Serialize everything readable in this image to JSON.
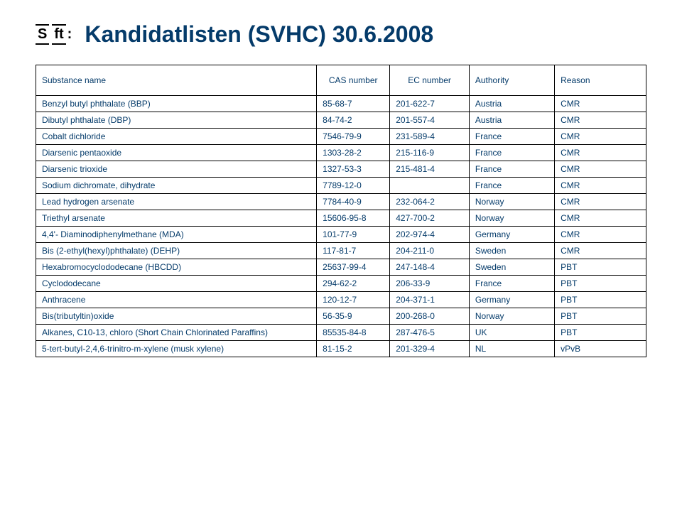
{
  "title": "Kandidatlisten (SVHC) 30.6.2008",
  "logo": {
    "part1": "S",
    "part2": "ft",
    "colon": ":"
  },
  "headers": {
    "name": "Substance name",
    "cas": "CAS number",
    "ec": "EC number",
    "authority": "Authority",
    "reason": "Reason"
  },
  "rows": [
    {
      "name": "Benzyl butyl phthalate  (BBP)",
      "cas": "85-68-7",
      "ec": "201-622-7",
      "authority": "Austria",
      "reason": "CMR"
    },
    {
      "name": "Dibutyl phthalate      (DBP)",
      "cas": "84-74-2",
      "ec": "201-557-4",
      "authority": "Austria",
      "reason": "CMR"
    },
    {
      "name": "Cobalt dichloride",
      "cas": "7546-79-9",
      "ec": "231-589-4",
      "authority": "France",
      "reason": "CMR"
    },
    {
      "name": "Diarsenic pentaoxide",
      "cas": "1303-28-2",
      "ec": "215-116-9",
      "authority": "France",
      "reason": "CMR"
    },
    {
      "name": "Diarsenic trioxide",
      "cas": "1327-53-3",
      "ec": "215-481-4",
      "authority": "France",
      "reason": "CMR"
    },
    {
      "name": "Sodium dichromate, dihydrate",
      "cas": "7789-12-0",
      "ec": "",
      "authority": "France",
      "reason": "CMR"
    },
    {
      "name": "Lead hydrogen arsenate",
      "cas": "7784-40-9",
      "ec": "232-064-2",
      "authority": "Norway",
      "reason": "CMR"
    },
    {
      "name": "Triethyl arsenate",
      "cas": "15606-95-8",
      "ec": "427-700-2",
      "authority": "Norway",
      "reason": "CMR"
    },
    {
      "name": "4,4'- Diaminodiphenylmethane  (MDA)",
      "cas": "101-77-9",
      "ec": "202-974-4",
      "authority": "Germany",
      "reason": "CMR"
    },
    {
      "name": "Bis (2-ethyl(hexyl)phthalate) (DEHP)",
      "cas": "117-81-7",
      "ec": "204-211-0",
      "authority": "Sweden",
      "reason": "CMR"
    },
    {
      "name": "Hexabromocyclododecane (HBCDD)",
      "cas": "25637-99-4",
      "ec": "247-148-4",
      "authority": "Sweden",
      "reason": "PBT"
    },
    {
      "name": "Cyclododecane",
      "cas": "294-62-2",
      "ec": "206-33-9",
      "authority": "France",
      "reason": "PBT"
    },
    {
      "name": "Anthracene",
      "cas": "120-12-7",
      "ec": "204-371-1",
      "authority": "Germany",
      "reason": "PBT"
    },
    {
      "name": "Bis(tributyltin)oxide",
      "cas": "56-35-9",
      "ec": "200-268-0",
      "authority": "Norway",
      "reason": "PBT"
    },
    {
      "name": "Alkanes, C10-13, chloro (Short Chain Chlorinated Paraffins)",
      "cas": "85535-84-8",
      "ec": "287-476-5",
      "authority": "UK",
      "reason": "PBT"
    },
    {
      "name": "5-tert-butyl-2,4,6-trinitro-m-xylene (musk xylene)",
      "cas": "81-15-2",
      "ec": "201-329-4",
      "authority": "NL",
      "reason": "vPvB"
    }
  ],
  "style": {
    "text_color": "#053b6a",
    "border_color": "#000000",
    "background": "#ffffff",
    "title_fontsize": 32,
    "body_fontsize": 12
  }
}
